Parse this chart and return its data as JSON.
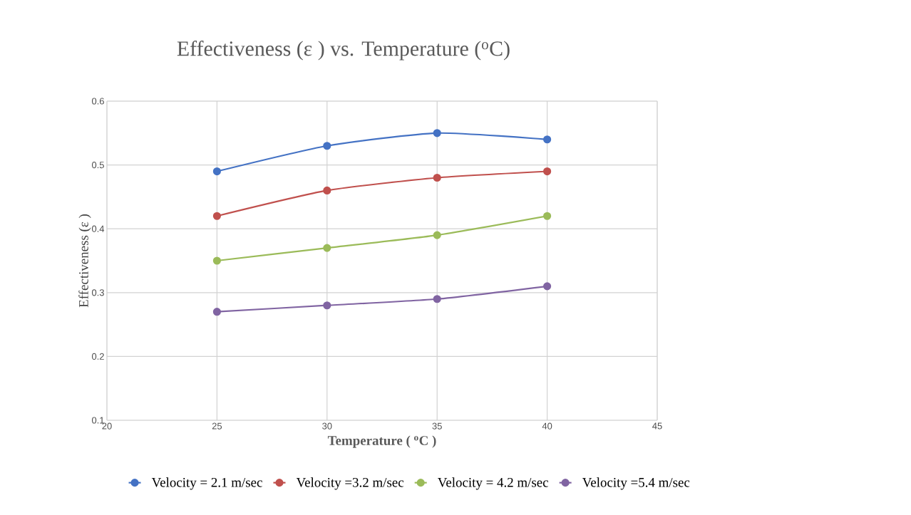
{
  "chart_data": {
    "type": "line",
    "title": "Effectiveness (ε ) vs. Temperature ($^{o}$C)",
    "xlabel": "Temperature ( $^{o}$C )",
    "ylabel": "Effectiveness (ε )",
    "x": [
      25,
      30,
      35,
      40
    ],
    "series": [
      {
        "name": "Velocity = 2.1 m/sec",
        "color": "#4472c4",
        "values": [
          0.49,
          0.53,
          0.55,
          0.54
        ]
      },
      {
        "name": "Velocity =3.2 m/sec",
        "color": "#c0504d",
        "values": [
          0.42,
          0.46,
          0.48,
          0.49
        ]
      },
      {
        "name": "Velocity = 4.2 m/sec",
        "color": "#9bbb59",
        "values": [
          0.35,
          0.37,
          0.39,
          0.42
        ]
      },
      {
        "name": "Velocity =5.4 m/sec",
        "color": "#8064a2",
        "values": [
          0.27,
          0.28,
          0.29,
          0.31
        ]
      }
    ],
    "xlim": [
      20,
      45
    ],
    "xticks": [
      20,
      25,
      30,
      35,
      40,
      45
    ],
    "ylim": [
      0.1,
      0.6
    ],
    "yticks": [
      0.1,
      0.2,
      0.3,
      0.4,
      0.5,
      0.6
    ],
    "grid": true,
    "legend": "bottom",
    "marker": "circle",
    "line_style": "solid"
  }
}
